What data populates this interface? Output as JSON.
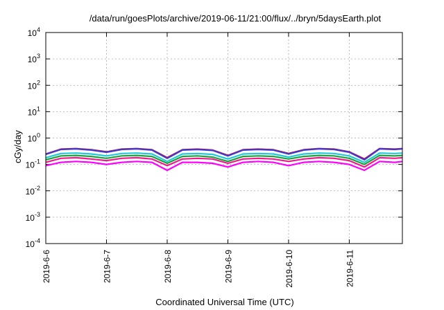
{
  "chart_data": {
    "type": "line",
    "title": "/data/run/goesPlots/archive/2019-06-11/21:00/flux/../bryn/5daysEarth.plot",
    "xlabel": "Coordinated Universal Time (UTC)",
    "ylabel": "cGy/day",
    "yscale": "log",
    "ylim": [
      0.0001,
      10000
    ],
    "xlim": [
      "2019-06-06",
      "2019-06-11T21:00"
    ],
    "grid": true,
    "x_ticks": [
      "2019-6-6",
      "2019-6-7",
      "2019-6-8",
      "2019-6-9",
      "2019-6-10",
      "2019-6-11"
    ],
    "y_ticks": [
      {
        "base": "10",
        "exp": "-4"
      },
      {
        "base": "10",
        "exp": "-3"
      },
      {
        "base": "10",
        "exp": "-2"
      },
      {
        "base": "10",
        "exp": "-1"
      },
      {
        "base": "10",
        "exp": "0"
      },
      {
        "base": "10",
        "exp": "1"
      },
      {
        "base": "10",
        "exp": "2"
      },
      {
        "base": "10",
        "exp": "3"
      },
      {
        "base": "10",
        "exp": "4"
      }
    ],
    "x": [
      "2019-06-06T00:00",
      "2019-06-06T06:00",
      "2019-06-06T12:00",
      "2019-06-06T18:00",
      "2019-06-07T00:00",
      "2019-06-07T06:00",
      "2019-06-07T12:00",
      "2019-06-07T18:00",
      "2019-06-08T00:00",
      "2019-06-08T06:00",
      "2019-06-08T12:00",
      "2019-06-08T18:00",
      "2019-06-09T00:00",
      "2019-06-09T06:00",
      "2019-06-09T12:00",
      "2019-06-09T18:00",
      "2019-06-10T00:00",
      "2019-06-10T06:00",
      "2019-06-10T12:00",
      "2019-06-10T18:00",
      "2019-06-11T00:00",
      "2019-06-11T06:00",
      "2019-06-11T12:00",
      "2019-06-11T18:00",
      "2019-06-11T21:00"
    ],
    "series": [
      {
        "color": "#e8000b",
        "values": [
          0.25,
          0.38,
          0.4,
          0.36,
          0.3,
          0.38,
          0.4,
          0.36,
          0.18,
          0.36,
          0.38,
          0.35,
          0.22,
          0.36,
          0.38,
          0.36,
          0.26,
          0.36,
          0.4,
          0.38,
          0.3,
          0.16,
          0.4,
          0.38,
          0.4
        ]
      },
      {
        "color": "#3a3ad6",
        "values": [
          0.24,
          0.37,
          0.39,
          0.35,
          0.29,
          0.37,
          0.39,
          0.35,
          0.17,
          0.35,
          0.37,
          0.34,
          0.21,
          0.35,
          0.37,
          0.35,
          0.25,
          0.35,
          0.39,
          0.37,
          0.29,
          0.15,
          0.39,
          0.37,
          0.39
        ]
      },
      {
        "color": "#1ec9d8",
        "values": [
          0.18,
          0.26,
          0.27,
          0.25,
          0.21,
          0.26,
          0.27,
          0.25,
          0.13,
          0.25,
          0.26,
          0.24,
          0.16,
          0.25,
          0.26,
          0.25,
          0.19,
          0.25,
          0.27,
          0.26,
          0.21,
          0.12,
          0.27,
          0.26,
          0.27
        ]
      },
      {
        "color": "#1aa33a",
        "values": [
          0.15,
          0.21,
          0.22,
          0.2,
          0.17,
          0.21,
          0.22,
          0.2,
          0.11,
          0.2,
          0.21,
          0.19,
          0.13,
          0.2,
          0.21,
          0.2,
          0.16,
          0.2,
          0.22,
          0.21,
          0.17,
          0.1,
          0.22,
          0.21,
          0.22
        ]
      },
      {
        "color": "#f0188c",
        "values": [
          0.12,
          0.17,
          0.18,
          0.16,
          0.14,
          0.17,
          0.18,
          0.16,
          0.09,
          0.16,
          0.17,
          0.16,
          0.11,
          0.16,
          0.17,
          0.16,
          0.13,
          0.16,
          0.18,
          0.17,
          0.14,
          0.08,
          0.18,
          0.17,
          0.18
        ]
      },
      {
        "color": "#ff00ff",
        "values": [
          0.09,
          0.12,
          0.13,
          0.12,
          0.1,
          0.12,
          0.13,
          0.12,
          0.06,
          0.12,
          0.12,
          0.11,
          0.08,
          0.12,
          0.13,
          0.12,
          0.09,
          0.12,
          0.13,
          0.12,
          0.1,
          0.06,
          0.13,
          0.12,
          0.13
        ]
      }
    ]
  }
}
